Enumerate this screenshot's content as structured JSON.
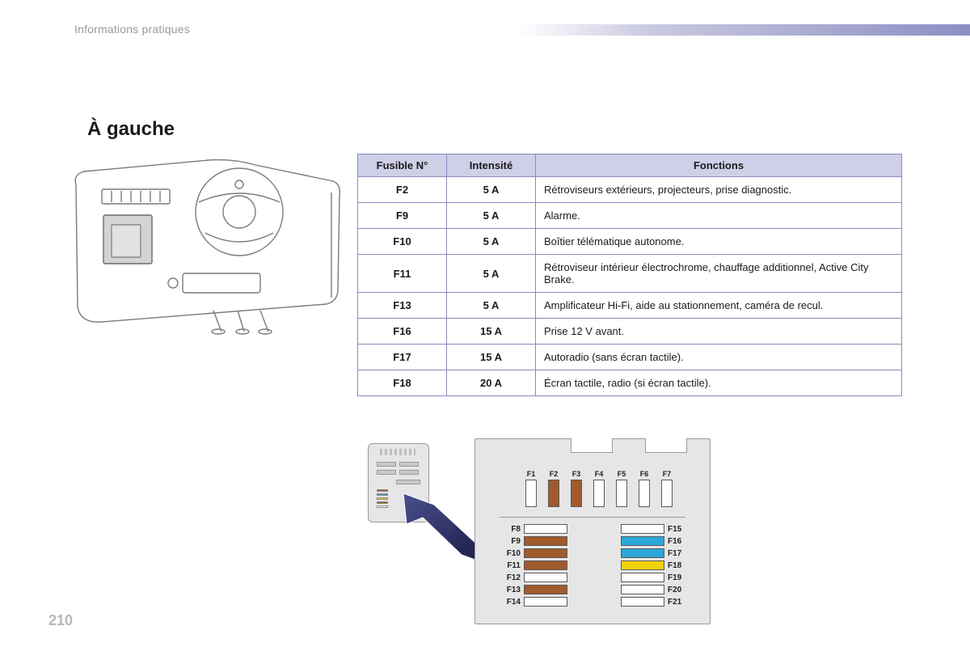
{
  "header": {
    "section": "Informations pratiques"
  },
  "page_number": "210",
  "title": "À gauche",
  "colors": {
    "table_border": "#8a8ac0",
    "table_header_bg": "#cfcfe8",
    "fusebox_bg": "#e6e6e6",
    "fusebox_border": "#9a9a9a",
    "arrow": "#2b2f6b",
    "fuse_brown": "#a05a2c",
    "fuse_blue": "#2aa7d8",
    "fuse_yellow": "#f2d20c",
    "fuse_white": "#ffffff"
  },
  "table": {
    "headers": {
      "fuse": "Fusible N°",
      "intensity": "Intensité",
      "functions": "Fonctions"
    },
    "rows": [
      {
        "fuse": "F2",
        "intensity": "5 A",
        "functions": "Rétroviseurs extérieurs, projecteurs, prise diagnostic."
      },
      {
        "fuse": "F9",
        "intensity": "5 A",
        "functions": "Alarme."
      },
      {
        "fuse": "F10",
        "intensity": "5 A",
        "functions": "Boîtier télématique autonome."
      },
      {
        "fuse": "F11",
        "intensity": "5 A",
        "functions": "Rétroviseur intérieur électrochrome, chauffage additionnel, Active City Brake."
      },
      {
        "fuse": "F13",
        "intensity": "5 A",
        "functions": "Amplificateur Hi-Fi, aide au stationnement, caméra de recul."
      },
      {
        "fuse": "F16",
        "intensity": "15 A",
        "functions": "Prise 12 V avant."
      },
      {
        "fuse": "F17",
        "intensity": "15 A",
        "functions": "Autoradio (sans écran tactile)."
      },
      {
        "fuse": "F18",
        "intensity": "20 A",
        "functions": "Écran tactile, radio (si écran tactile)."
      }
    ]
  },
  "fusebox": {
    "top_row": [
      {
        "label": "F1",
        "color": "#ffffff"
      },
      {
        "label": "F2",
        "color": "#a05a2c"
      },
      {
        "label": "F3",
        "color": "#a05a2c"
      },
      {
        "label": "F4",
        "color": "#ffffff"
      },
      {
        "label": "F5",
        "color": "#ffffff"
      },
      {
        "label": "F6",
        "color": "#ffffff"
      },
      {
        "label": "F7",
        "color": "#ffffff"
      }
    ],
    "grid": [
      {
        "left_label": "F8",
        "left_color": "#ffffff",
        "right_color": "#ffffff",
        "right_label": "F15"
      },
      {
        "left_label": "F9",
        "left_color": "#a05a2c",
        "right_color": "#2aa7d8",
        "right_label": "F16"
      },
      {
        "left_label": "F10",
        "left_color": "#a05a2c",
        "right_color": "#2aa7d8",
        "right_label": "F17"
      },
      {
        "left_label": "F11",
        "left_color": "#a05a2c",
        "right_color": "#f2d20c",
        "right_label": "F18"
      },
      {
        "left_label": "F12",
        "left_color": "#ffffff",
        "right_color": "#ffffff",
        "right_label": "F19"
      },
      {
        "left_label": "F13",
        "left_color": "#a05a2c",
        "right_color": "#ffffff",
        "right_label": "F20"
      },
      {
        "left_label": "F14",
        "left_color": "#ffffff",
        "right_color": "#ffffff",
        "right_label": "F21"
      }
    ],
    "small_box_stripes": [
      "#a05a2c",
      "#2aa7d8",
      "#f2d20c",
      "#a05a2c",
      "#ffffff"
    ]
  }
}
